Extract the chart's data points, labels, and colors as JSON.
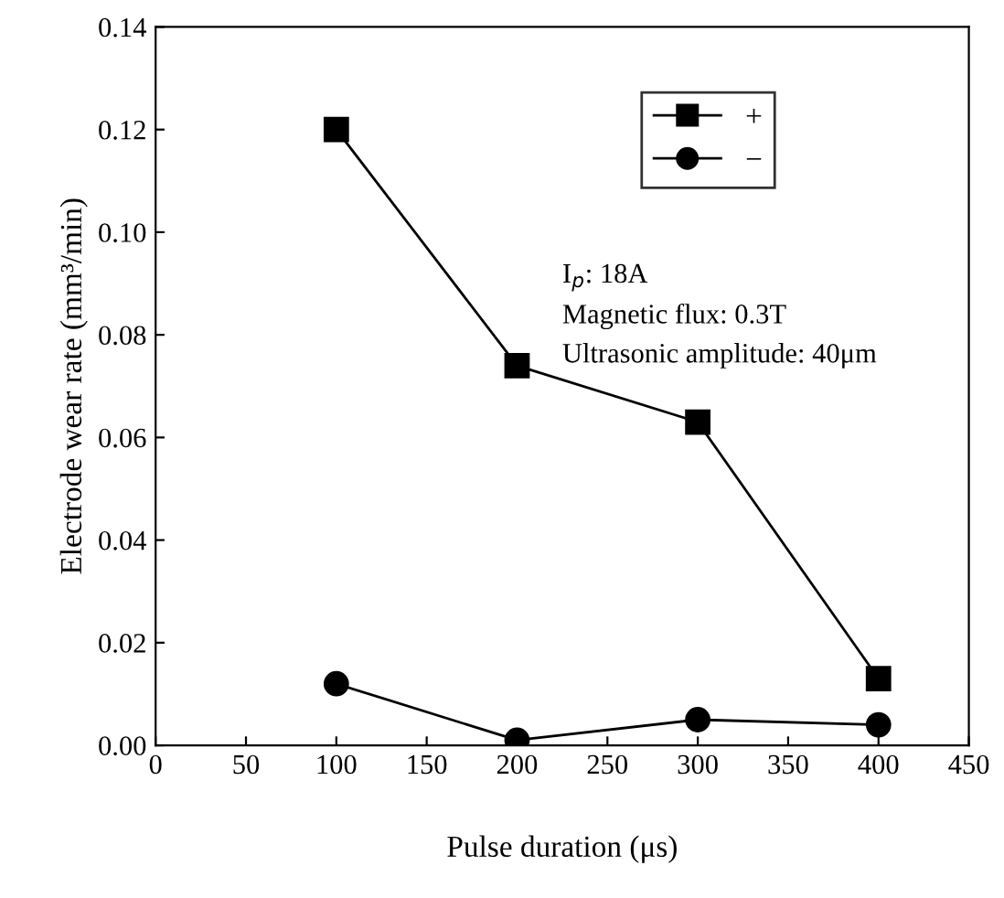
{
  "chart_data": {
    "type": "line",
    "xlabel": "Pulse duration (μs)",
    "ylabel": "Electrode wear rate (mm³/min)",
    "x": [
      100,
      200,
      300,
      400
    ],
    "series": [
      {
        "name": "+",
        "color": "#000000",
        "marker": "square",
        "values": [
          0.12,
          0.074,
          0.063,
          0.013
        ]
      },
      {
        "name": "−",
        "color": "#000000",
        "marker": "circle",
        "values": [
          0.012,
          0.001,
          0.005,
          0.004
        ]
      }
    ],
    "xlim": [
      0,
      450
    ],
    "xticks": [
      0,
      50,
      100,
      150,
      200,
      250,
      300,
      350,
      400,
      450
    ],
    "ylim": [
      0,
      0.14
    ],
    "yticks": [
      {
        "value": 0,
        "label": "0.00"
      },
      {
        "value": 0.02,
        "label": "0.02"
      },
      {
        "value": 0.04,
        "label": "0.04"
      },
      {
        "value": 0.06,
        "label": "0.06"
      },
      {
        "value": 0.08,
        "label": "0.08"
      },
      {
        "value": 0.1,
        "label": "0.10"
      },
      {
        "value": 0.12,
        "label": "0.12"
      },
      {
        "value": 0.14,
        "label": "0.14"
      }
    ],
    "annotations": [
      "I$_{p}$: 18A",
      "Magnetic flux: 0.3T",
      "Ultrasonic amplitude: 40μm"
    ],
    "legend": "top right",
    "grid": false,
    "line_style": "solid"
  }
}
